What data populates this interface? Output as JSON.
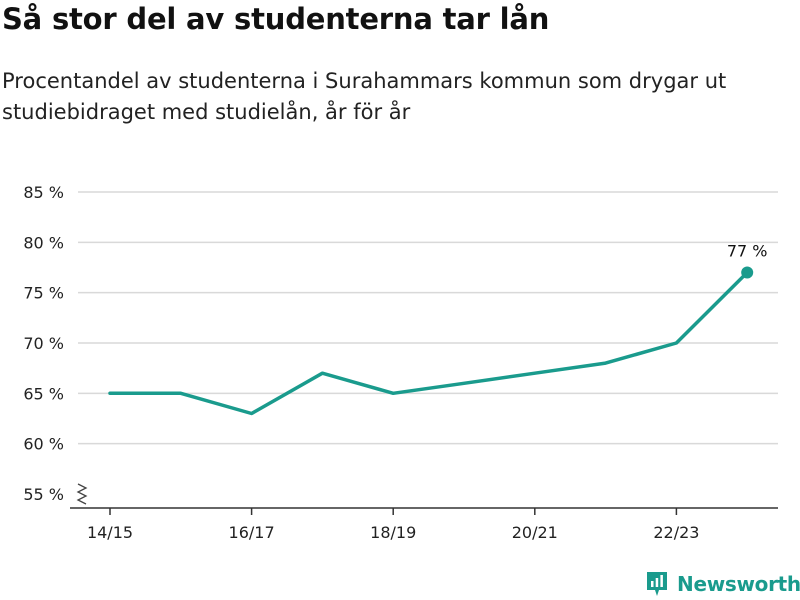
{
  "title": "Så stor del av studenterna tar lån",
  "subtitle": "Procentandel av studenterna i Surahammars kommun som drygar ut studiebidraget med studielån, år för år",
  "brand": {
    "name": "Newsworthy",
    "icon": "newsworthy-logo-icon",
    "color": "#1a9b8d"
  },
  "chart_data": {
    "type": "line",
    "x": [
      "14/15",
      "15/16",
      "16/17",
      "17/18",
      "18/19",
      "19/20",
      "20/21",
      "21/22",
      "22/23",
      "23/24"
    ],
    "x_tick_labels": [
      "14/15",
      "16/17",
      "18/19",
      "20/21",
      "22/23"
    ],
    "series": [
      {
        "values": [
          65,
          65,
          63,
          67,
          65,
          66,
          67,
          68,
          70,
          77
        ],
        "color": "#1a9b8d"
      }
    ],
    "y_ticks": [
      55,
      60,
      65,
      70,
      75,
      80,
      85
    ],
    "y_tick_labels": [
      "55 %",
      "60 %",
      "65 %",
      "70 %",
      "75 %",
      "80 %",
      "85 %"
    ],
    "ylim": [
      55,
      85
    ],
    "y_axis_break": true,
    "grid": true,
    "annotation": {
      "text": "77 %",
      "index": 9
    }
  }
}
